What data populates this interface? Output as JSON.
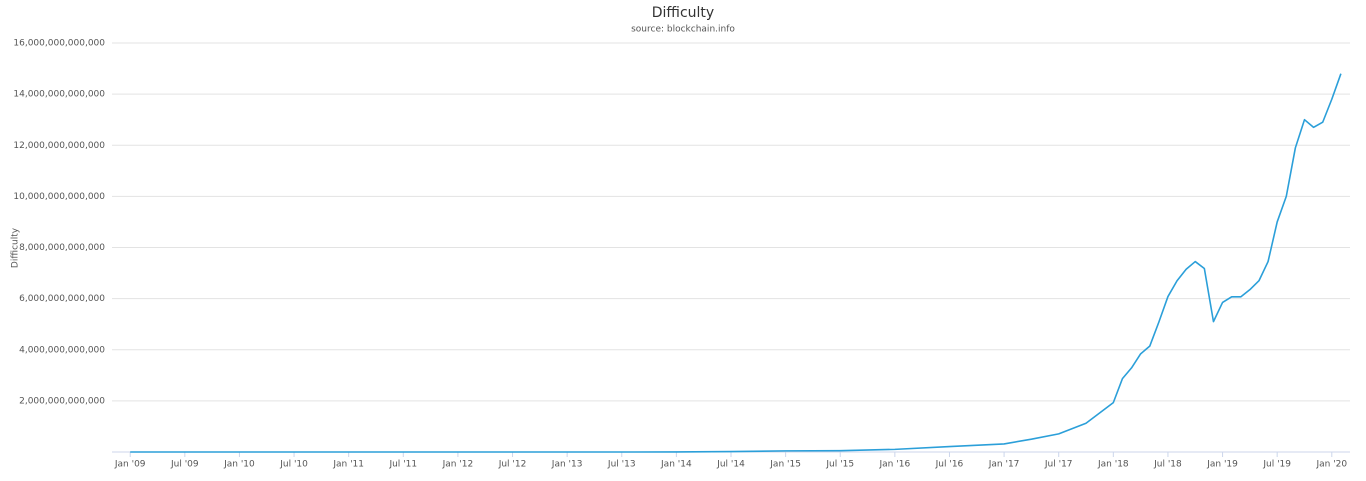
{
  "chart_data": {
    "type": "line",
    "title": "Difficulty",
    "subtitle": "source: blockchain.info",
    "y_label": "Difficulty",
    "color": "#2b9fd9",
    "grid": true,
    "x": [
      "2009-01",
      "2009-07",
      "2010-01",
      "2010-07",
      "2011-01",
      "2011-07",
      "2012-01",
      "2012-07",
      "2013-01",
      "2013-07",
      "2014-01",
      "2014-07",
      "2015-01",
      "2015-07",
      "2016-01",
      "2016-07",
      "2017-01",
      "2017-04",
      "2017-07",
      "2017-10",
      "2018-01",
      "2018-02",
      "2018-03",
      "2018-04",
      "2018-05",
      "2018-06",
      "2018-07",
      "2018-08",
      "2018-09",
      "2018-10",
      "2018-11",
      "2018-12",
      "2019-01",
      "2019-02",
      "2019-03",
      "2019-04",
      "2019-05",
      "2019-06",
      "2019-07",
      "2019-08",
      "2019-09",
      "2019-10",
      "2019-11",
      "2019-12",
      "2020-01",
      "2020-02"
    ],
    "values": [
      1,
      1,
      1000,
      1000,
      20000,
      1500000,
      1200000,
      2000000,
      3400000,
      31000000,
      1400000000,
      17000000000,
      44000000000,
      52000000000,
      103000000000,
      213000000000,
      317000000000,
      500000000000,
      708000000000,
      1123000000000,
      1931000000000,
      2870000000000,
      3290000000000,
      3840000000000,
      4140000000000,
      5080000000000,
      6080000000000,
      6700000000000,
      7150000000000,
      7450000000000,
      7180000000000,
      5100000000000,
      5850000000000,
      6070000000000,
      6070000000000,
      6350000000000,
      6700000000000,
      7450000000000,
      9000000000000,
      10000000000000,
      11900000000000,
      13000000000000,
      12700000000000,
      12900000000000,
      13800000000000,
      14800000000000
    ],
    "xlim": [
      "2008-11",
      "2020-03"
    ],
    "xticks": [
      {
        "value": "2009-01",
        "label": "Jan '09"
      },
      {
        "value": "2009-07",
        "label": "Jul '09"
      },
      {
        "value": "2010-01",
        "label": "Jan '10"
      },
      {
        "value": "2010-07",
        "label": "Jul '10"
      },
      {
        "value": "2011-01",
        "label": "Jan '11"
      },
      {
        "value": "2011-07",
        "label": "Jul '11"
      },
      {
        "value": "2012-01",
        "label": "Jan '12"
      },
      {
        "value": "2012-07",
        "label": "Jul '12"
      },
      {
        "value": "2013-01",
        "label": "Jan '13"
      },
      {
        "value": "2013-07",
        "label": "Jul '13"
      },
      {
        "value": "2014-01",
        "label": "Jan '14"
      },
      {
        "value": "2014-07",
        "label": "Jul '14"
      },
      {
        "value": "2015-01",
        "label": "Jan '15"
      },
      {
        "value": "2015-07",
        "label": "Jul '15"
      },
      {
        "value": "2016-01",
        "label": "Jan '16"
      },
      {
        "value": "2016-07",
        "label": "Jul '16"
      },
      {
        "value": "2017-01",
        "label": "Jan '17"
      },
      {
        "value": "2017-07",
        "label": "Jul '17"
      },
      {
        "value": "2018-01",
        "label": "Jan '18"
      },
      {
        "value": "2018-07",
        "label": "Jul '18"
      },
      {
        "value": "2019-01",
        "label": "Jan '19"
      },
      {
        "value": "2019-07",
        "label": "Jul '19"
      },
      {
        "value": "2020-01",
        "label": "Jan '20"
      }
    ],
    "ylim": [
      0,
      16000000000000
    ],
    "yticks": [
      {
        "value": 2000000000000,
        "label": "2,000,000,000,000"
      },
      {
        "value": 4000000000000,
        "label": "4,000,000,000,000"
      },
      {
        "value": 6000000000000,
        "label": "6,000,000,000,000"
      },
      {
        "value": 8000000000000,
        "label": "8,000,000,000,000"
      },
      {
        "value": 10000000000000,
        "label": "10,000,000,000,000"
      },
      {
        "value": 12000000000000,
        "label": "12,000,000,000,000"
      },
      {
        "value": 14000000000000,
        "label": "14,000,000,000,000"
      },
      {
        "value": 16000000000000,
        "label": "16,000,000,000,000"
      }
    ]
  }
}
